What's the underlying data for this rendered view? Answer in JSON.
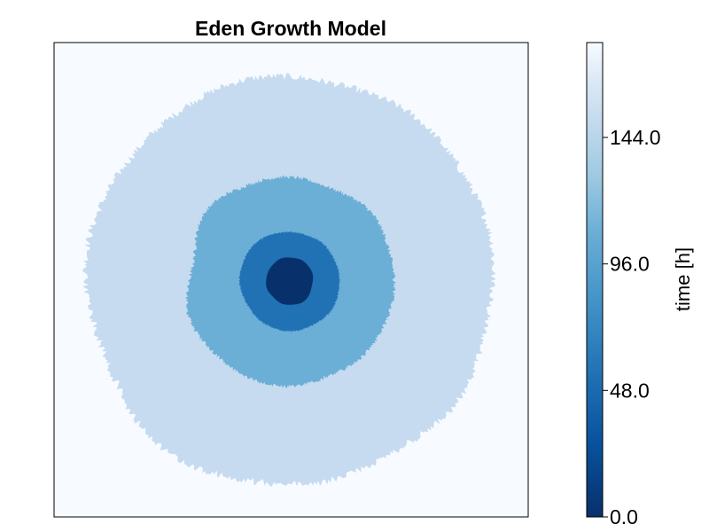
{
  "chart_data": {
    "type": "heatmap",
    "title": "Eden Growth Model",
    "xlabel": "",
    "ylabel": "",
    "grid": false,
    "colormap": "Blues (reversed)",
    "colorbar": {
      "label": "time [h]",
      "range": [
        0,
        180
      ],
      "ticks": [
        0.0,
        48.0,
        96.0,
        144.0
      ],
      "tick_labels": [
        "0.0",
        "48.0",
        "96.0",
        "144.0"
      ],
      "placement": "right"
    },
    "layers": [
      {
        "name": "background",
        "time_h": 180,
        "color": "#f7fbff"
      },
      {
        "name": "growth-ring-4",
        "time_h": 144,
        "mean_radius_frac": 0.43,
        "color": "#c6dbef"
      },
      {
        "name": "growth-ring-3",
        "time_h": 96,
        "mean_radius_frac": 0.22,
        "color": "#6baed6"
      },
      {
        "name": "growth-ring-2",
        "time_h": 48,
        "mean_radius_frac": 0.105,
        "color": "#2171b5"
      },
      {
        "name": "seed",
        "time_h": 0,
        "mean_radius_frac": 0.05,
        "color": "#08306b"
      }
    ]
  }
}
